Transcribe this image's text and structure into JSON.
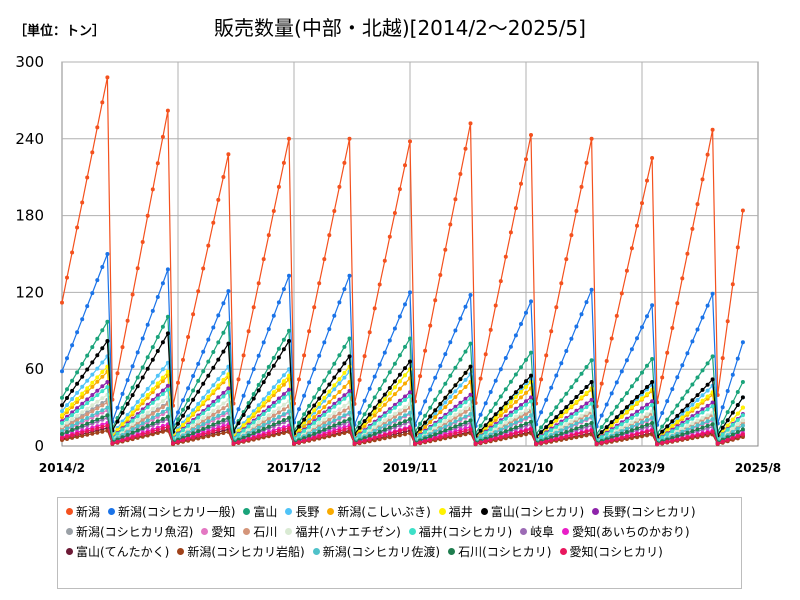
{
  "header": {
    "unit": "［単位：トン］",
    "title": "販売数量(中部・北越)[2014/2～2025/5]"
  },
  "chart_data": {
    "type": "line",
    "title": "販売数量(中部・北越)[2014/2～2025/5]",
    "unit": "［単位：トン］",
    "x_ticks": [
      "2014/2",
      "2016/1",
      "2017/12",
      "2019/11",
      "2021/10",
      "2023/9",
      "2025/8"
    ],
    "y_ticks": [
      0,
      60,
      120,
      180,
      240,
      300
    ],
    "ylim": [
      0,
      300
    ],
    "grid": true,
    "legend_position": "bottom",
    "cycles": [
      "2014/2-2014/11",
      "2014/12-2015/11",
      "2015/12-2016/11",
      "2016/12-2017/11",
      "2017/12-2018/11",
      "2018/12-2019/11",
      "2019/12-2020/11",
      "2020/12-2021/11",
      "2021/12-2022/11",
      "2022/12-2023/11",
      "2023/12-2024/11",
      "2024/12-2025/5"
    ],
    "series": [
      {
        "name": "新潟",
        "color": "#f4511e",
        "peaks": [
          288,
          262,
          228,
          240,
          240,
          238,
          252,
          243,
          240,
          225,
          247,
          184
        ]
      },
      {
        "name": "新潟(コシヒカリ一般)",
        "color": "#1a73e8",
        "peaks": [
          150,
          138,
          121,
          133,
          133,
          120,
          118,
          113,
          122,
          110,
          119,
          81
        ]
      },
      {
        "name": "富山",
        "color": "#1aa37a",
        "peaks": [
          97,
          101,
          96,
          90,
          84,
          84,
          80,
          73,
          67,
          68,
          70,
          50
        ]
      },
      {
        "name": "長野",
        "color": "#4fc3f7",
        "peaks": [
          70,
          65,
          62,
          60,
          58,
          60,
          56,
          52,
          50,
          48,
          47,
          38
        ]
      },
      {
        "name": "新潟(こしいぶき)",
        "color": "#f9ab00",
        "peaks": [
          58,
          55,
          54,
          52,
          50,
          53,
          50,
          45,
          44,
          43,
          40,
          30
        ]
      },
      {
        "name": "福井",
        "color": "#fff200",
        "peaks": [
          62,
          58,
          56,
          55,
          62,
          60,
          62,
          50,
          45,
          44,
          42,
          30
        ]
      },
      {
        "name": "富山(コシヒカリ)",
        "color": "#000000",
        "peaks": [
          82,
          88,
          80,
          82,
          70,
          66,
          62,
          55,
          50,
          50,
          52,
          38
        ]
      },
      {
        "name": "長野(コシヒカリ)",
        "color": "#8e24aa",
        "peaks": [
          50,
          47,
          45,
          44,
          43,
          42,
          40,
          38,
          36,
          35,
          34,
          25
        ]
      },
      {
        "name": "新潟(コシヒカリ魚沼)",
        "color": "#9aa0a6",
        "peaks": [
          36,
          34,
          32,
          31,
          30,
          30,
          29,
          28,
          27,
          26,
          25,
          20
        ]
      },
      {
        "name": "愛知",
        "color": "#e377c2",
        "peaks": [
          28,
          27,
          26,
          26,
          25,
          25,
          24,
          23,
          22,
          21,
          20,
          16
        ]
      },
      {
        "name": "石川",
        "color": "#d4957a",
        "peaks": [
          34,
          33,
          32,
          31,
          30,
          30,
          29,
          27,
          26,
          25,
          24,
          18
        ]
      },
      {
        "name": "福井(ハナエチゼン)",
        "color": "#d9ead3",
        "peaks": [
          40,
          38,
          36,
          35,
          34,
          33,
          32,
          30,
          28,
          27,
          26,
          20
        ]
      },
      {
        "name": "福井(コシヒカリ)",
        "color": "#3de0c8",
        "peaks": [
          46,
          44,
          42,
          41,
          40,
          39,
          37,
          35,
          33,
          32,
          31,
          24
        ]
      },
      {
        "name": "岐阜",
        "color": "#9c6bb5",
        "peaks": [
          22,
          21,
          20,
          20,
          19,
          19,
          18,
          17,
          16,
          16,
          15,
          12
        ]
      },
      {
        "name": "愛知(あいちのかおり)",
        "color": "#e91ec7",
        "peaks": [
          18,
          17,
          17,
          16,
          16,
          15,
          15,
          14,
          13,
          13,
          12,
          10
        ]
      },
      {
        "name": "富山(てんたかく)",
        "color": "#6d1a36",
        "peaks": [
          14,
          13,
          13,
          12,
          12,
          12,
          11,
          11,
          10,
          10,
          10,
          8
        ]
      },
      {
        "name": "新潟(コシヒカリ岩船)",
        "color": "#a0421a",
        "peaks": [
          12,
          12,
          11,
          11,
          11,
          10,
          10,
          10,
          9,
          9,
          9,
          7
        ]
      },
      {
        "name": "新潟(コシヒカリ佐渡)",
        "color": "#4fc1c9",
        "peaks": [
          30,
          29,
          28,
          27,
          26,
          26,
          25,
          24,
          23,
          22,
          21,
          16
        ]
      },
      {
        "name": "石川(コシヒカリ)",
        "color": "#1e7d4e",
        "peaks": [
          24,
          23,
          22,
          22,
          21,
          21,
          20,
          19,
          18,
          18,
          17,
          13
        ]
      },
      {
        "name": "愛知(コシヒカリ)",
        "color": "#e8175d",
        "peaks": [
          16,
          15,
          15,
          14,
          14,
          14,
          13,
          13,
          12,
          12,
          11,
          9
        ]
      }
    ]
  }
}
